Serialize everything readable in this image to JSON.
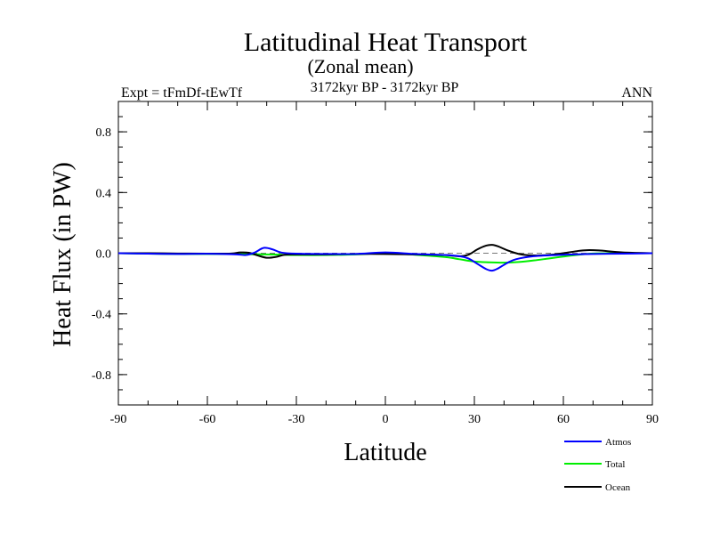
{
  "chart_data": {
    "type": "line",
    "title": "Latitudinal Heat Transport",
    "subtitle": "(Zonal mean)",
    "period": "3172kyr BP - 3172kyr BP",
    "left_label": "Expt = tFmDf-tEwTf",
    "right_label": "ANN",
    "xlabel": "Latitude",
    "ylabel": "Heat Flux (in PW)",
    "xlim": [
      -90,
      90
    ],
    "ylim": [
      -1.0,
      1.0
    ],
    "x_ticks": [
      -90,
      -60,
      -30,
      0,
      30,
      60,
      90
    ],
    "x_tick_labels": [
      "-90",
      "-60",
      "-30",
      "0",
      "30",
      "60",
      "90"
    ],
    "y_ticks": [
      0.8,
      0.4,
      0.0,
      -0.4,
      -0.8
    ],
    "y_tick_labels": [
      "0.8",
      "0.4",
      "0.0",
      "-0.4",
      "-0.8"
    ],
    "zero_line": "dashed",
    "legend_position": "bottom-right",
    "series": [
      {
        "name": "Atmos",
        "color": "#0000ff",
        "x": [
          -90,
          -80,
          -70,
          -60,
          -50,
          -47,
          -44,
          -41,
          -38,
          -35,
          -30,
          -20,
          -10,
          0,
          10,
          20,
          25,
          28,
          31,
          34,
          36,
          38,
          41,
          44,
          50,
          60,
          70,
          80,
          90
        ],
        "y": [
          0.0,
          -0.003,
          -0.005,
          -0.004,
          -0.008,
          -0.012,
          0.005,
          0.035,
          0.025,
          0.004,
          -0.003,
          -0.005,
          -0.005,
          0.005,
          -0.005,
          -0.012,
          -0.02,
          -0.035,
          -0.07,
          -0.105,
          -0.115,
          -0.1,
          -0.065,
          -0.04,
          -0.02,
          -0.01,
          -0.005,
          -0.003,
          0.0
        ]
      },
      {
        "name": "Total",
        "color": "#00ee00",
        "x": [
          -90,
          -80,
          -70,
          -60,
          -50,
          -45,
          -40,
          -35,
          -30,
          -20,
          -10,
          0,
          10,
          20,
          25,
          30,
          35,
          40,
          45,
          50,
          55,
          60,
          65,
          70,
          80,
          90
        ],
        "y": [
          0.0,
          -0.003,
          -0.005,
          -0.005,
          -0.006,
          -0.007,
          -0.008,
          -0.01,
          -0.012,
          -0.012,
          -0.008,
          0.0,
          -0.01,
          -0.025,
          -0.04,
          -0.055,
          -0.06,
          -0.062,
          -0.058,
          -0.048,
          -0.035,
          -0.022,
          -0.01,
          -0.002,
          0.0,
          0.0
        ]
      },
      {
        "name": "Ocean",
        "color": "#000000",
        "x": [
          -90,
          -80,
          -70,
          -60,
          -52,
          -49,
          -46,
          -43,
          -40,
          -37,
          -34,
          -30,
          -20,
          -10,
          0,
          10,
          20,
          25,
          28,
          31,
          34,
          36,
          38,
          41,
          45,
          50,
          55,
          60,
          65,
          68,
          72,
          80,
          90
        ],
        "y": [
          0.0,
          0.0,
          -0.002,
          -0.003,
          -0.002,
          0.005,
          0.003,
          -0.015,
          -0.03,
          -0.025,
          -0.01,
          -0.008,
          -0.008,
          -0.005,
          -0.005,
          -0.008,
          -0.012,
          -0.02,
          -0.01,
          0.025,
          0.05,
          0.055,
          0.045,
          0.02,
          -0.005,
          -0.015,
          -0.012,
          0.0,
          0.015,
          0.02,
          0.018,
          0.005,
          0.0
        ]
      }
    ]
  }
}
